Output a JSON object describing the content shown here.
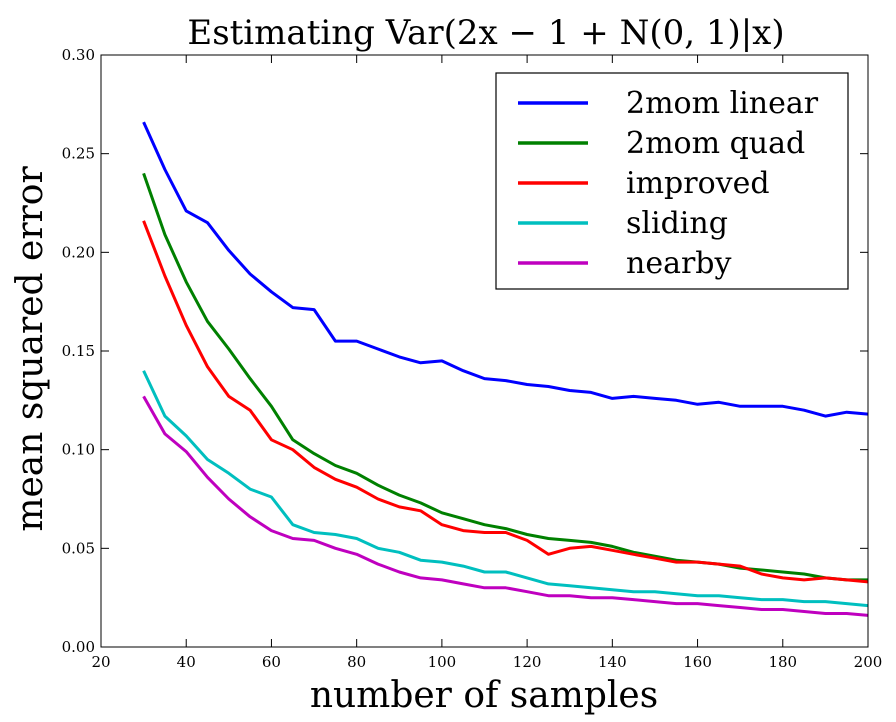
{
  "chart_data": {
    "type": "line",
    "title": "Estimating Var(2x − 1 + N(0, 1)|x)",
    "xlabel": "number of samples",
    "ylabel": "mean squared error",
    "xlim": [
      20,
      200
    ],
    "ylim": [
      0.0,
      0.3
    ],
    "xticks": [
      "20",
      "40",
      "60",
      "80",
      "100",
      "120",
      "140",
      "160",
      "180",
      "200"
    ],
    "yticks": [
      "0.00",
      "0.05",
      "0.10",
      "0.15",
      "0.20",
      "0.25",
      "0.30"
    ],
    "grid": false,
    "legend_position": "top-right",
    "x": [
      30,
      35,
      40,
      45,
      50,
      55,
      60,
      65,
      70,
      75,
      80,
      85,
      90,
      95,
      100,
      105,
      110,
      115,
      120,
      125,
      130,
      135,
      140,
      145,
      150,
      155,
      160,
      165,
      170,
      175,
      180,
      185,
      190,
      195,
      200
    ],
    "series": [
      {
        "name": "2mom linear",
        "color": "#0000ff",
        "values": [
          0.266,
          0.242,
          0.221,
          0.215,
          0.201,
          0.189,
          0.18,
          0.172,
          0.171,
          0.155,
          0.155,
          0.151,
          0.147,
          0.144,
          0.145,
          0.14,
          0.136,
          0.135,
          0.133,
          0.132,
          0.13,
          0.129,
          0.126,
          0.127,
          0.126,
          0.125,
          0.123,
          0.124,
          0.122,
          0.122,
          0.122,
          0.12,
          0.117,
          0.119,
          0.118
        ]
      },
      {
        "name": "2mom quad",
        "color": "#008000",
        "values": [
          0.24,
          0.209,
          0.185,
          0.165,
          0.151,
          0.136,
          0.122,
          0.105,
          0.098,
          0.092,
          0.088,
          0.082,
          0.077,
          0.073,
          0.068,
          0.065,
          0.062,
          0.06,
          0.057,
          0.055,
          0.054,
          0.053,
          0.051,
          0.048,
          0.046,
          0.044,
          0.043,
          0.042,
          0.04,
          0.039,
          0.038,
          0.037,
          0.035,
          0.034,
          0.034
        ]
      },
      {
        "name": "improved",
        "color": "#ff0000",
        "values": [
          0.216,
          0.188,
          0.163,
          0.142,
          0.127,
          0.12,
          0.105,
          0.1,
          0.091,
          0.085,
          0.081,
          0.075,
          0.071,
          0.069,
          0.062,
          0.059,
          0.058,
          0.058,
          0.054,
          0.047,
          0.05,
          0.051,
          0.049,
          0.047,
          0.045,
          0.043,
          0.043,
          0.042,
          0.041,
          0.037,
          0.035,
          0.034,
          0.035,
          0.034,
          0.033
        ]
      },
      {
        "name": "sliding",
        "color": "#00bfbf",
        "values": [
          0.14,
          0.117,
          0.107,
          0.095,
          0.088,
          0.08,
          0.076,
          0.062,
          0.058,
          0.057,
          0.055,
          0.05,
          0.048,
          0.044,
          0.043,
          0.041,
          0.038,
          0.038,
          0.035,
          0.032,
          0.031,
          0.03,
          0.029,
          0.028,
          0.028,
          0.027,
          0.026,
          0.026,
          0.025,
          0.024,
          0.024,
          0.023,
          0.023,
          0.022,
          0.021
        ]
      },
      {
        "name": "nearby",
        "color": "#bf00bf",
        "values": [
          0.127,
          0.108,
          0.099,
          0.086,
          0.075,
          0.066,
          0.059,
          0.055,
          0.054,
          0.05,
          0.047,
          0.042,
          0.038,
          0.035,
          0.034,
          0.032,
          0.03,
          0.03,
          0.028,
          0.026,
          0.026,
          0.025,
          0.025,
          0.024,
          0.023,
          0.022,
          0.022,
          0.021,
          0.02,
          0.019,
          0.019,
          0.018,
          0.017,
          0.017,
          0.016
        ]
      }
    ]
  }
}
